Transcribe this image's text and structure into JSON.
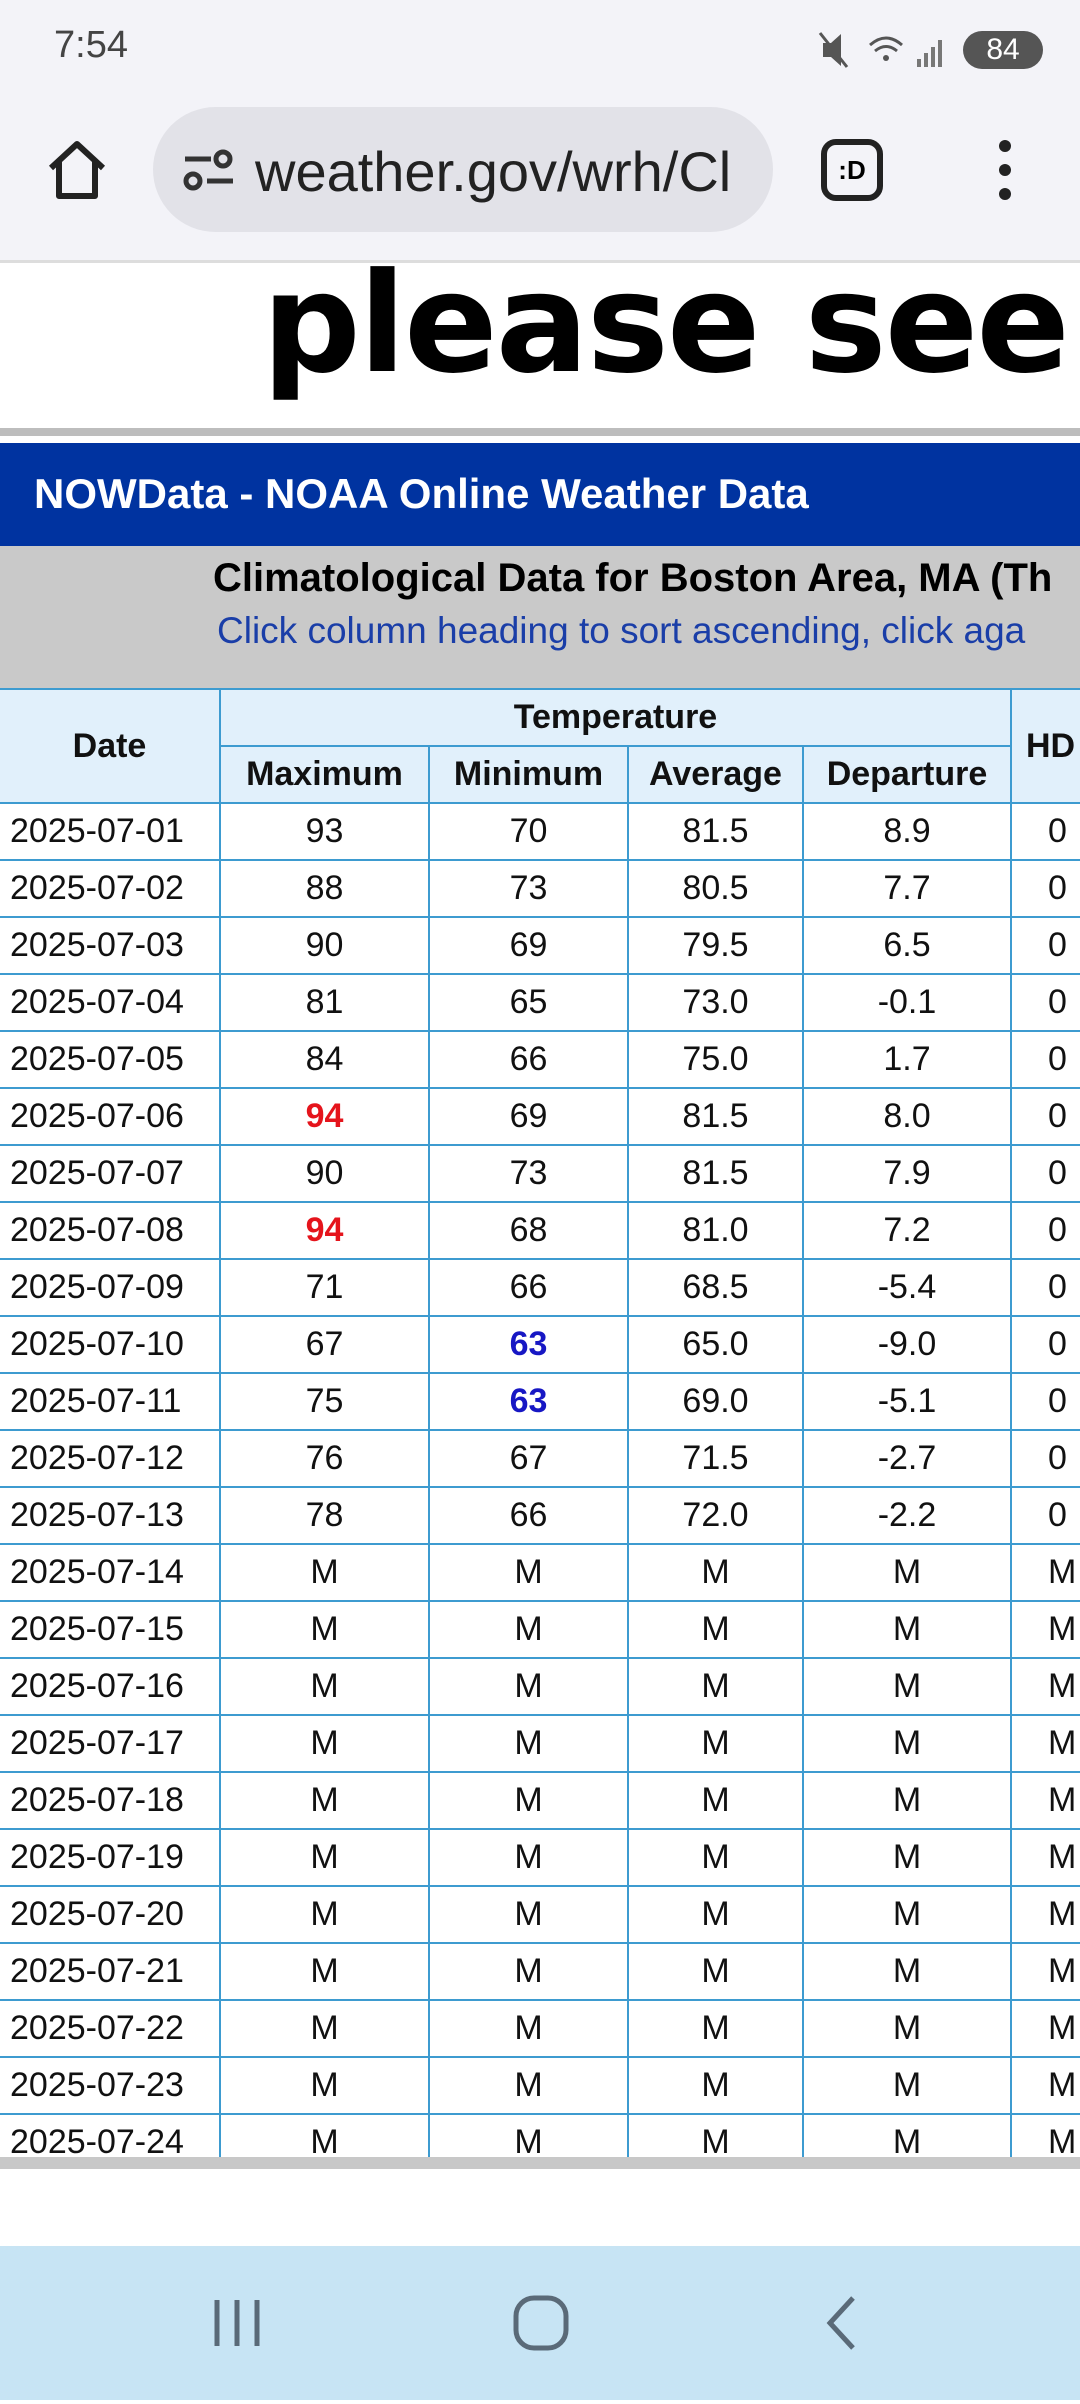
{
  "status_bar": {
    "time": "7:54",
    "battery": "84"
  },
  "browser": {
    "url": "weather.gov/wrh/Cl"
  },
  "page": {
    "banner": "please see ou",
    "nowdata_title": "NOWData - NOAA Online Weather Data",
    "heading": "Climatological Data for Boston Area, MA (Th",
    "instruction": "Click column heading to sort ascending, click aga"
  },
  "table": {
    "group_header": "Temperature",
    "columns": [
      "Date",
      "Maximum",
      "Minimum",
      "Average",
      "Departure",
      "HD"
    ],
    "rows": [
      [
        "2025-07-01",
        "93",
        "70",
        "81.5",
        "8.9",
        "0"
      ],
      [
        "2025-07-02",
        "88",
        "73",
        "80.5",
        "7.7",
        "0"
      ],
      [
        "2025-07-03",
        "90",
        "69",
        "79.5",
        "6.5",
        "0"
      ],
      [
        "2025-07-04",
        "81",
        "65",
        "73.0",
        "-0.1",
        "0"
      ],
      [
        "2025-07-05",
        "84",
        "66",
        "75.0",
        "1.7",
        "0"
      ],
      [
        "2025-07-06",
        {
          "text": "94",
          "color": "#e5141c"
        },
        "69",
        "81.5",
        "8.0",
        "0"
      ],
      [
        "2025-07-07",
        "90",
        "73",
        "81.5",
        "7.9",
        "0"
      ],
      [
        "2025-07-08",
        {
          "text": "94",
          "color": "#e5141c"
        },
        "68",
        "81.0",
        "7.2",
        "0"
      ],
      [
        "2025-07-09",
        "71",
        "66",
        "68.5",
        "-5.4",
        "0"
      ],
      [
        "2025-07-10",
        "67",
        {
          "text": "63",
          "color": "#1717c4"
        },
        "65.0",
        "-9.0",
        "0"
      ],
      [
        "2025-07-11",
        "75",
        {
          "text": "63",
          "color": "#1717c4"
        },
        "69.0",
        "-5.1",
        "0"
      ],
      [
        "2025-07-12",
        "76",
        "67",
        "71.5",
        "-2.7",
        "0"
      ],
      [
        "2025-07-13",
        "78",
        "66",
        "72.0",
        "-2.2",
        "0"
      ],
      [
        "2025-07-14",
        "M",
        "M",
        "M",
        "M",
        "M"
      ],
      [
        "2025-07-15",
        "M",
        "M",
        "M",
        "M",
        "M"
      ],
      [
        "2025-07-16",
        "M",
        "M",
        "M",
        "M",
        "M"
      ],
      [
        "2025-07-17",
        "M",
        "M",
        "M",
        "M",
        "M"
      ],
      [
        "2025-07-18",
        "M",
        "M",
        "M",
        "M",
        "M"
      ],
      [
        "2025-07-19",
        "M",
        "M",
        "M",
        "M",
        "M"
      ],
      [
        "2025-07-20",
        "M",
        "M",
        "M",
        "M",
        "M"
      ],
      [
        "2025-07-21",
        "M",
        "M",
        "M",
        "M",
        "M"
      ],
      [
        "2025-07-22",
        "M",
        "M",
        "M",
        "M",
        "M"
      ],
      [
        "2025-07-23",
        "M",
        "M",
        "M",
        "M",
        "M"
      ],
      [
        "2025-07-24",
        "M",
        "M",
        "M",
        "M",
        "M"
      ]
    ]
  }
}
